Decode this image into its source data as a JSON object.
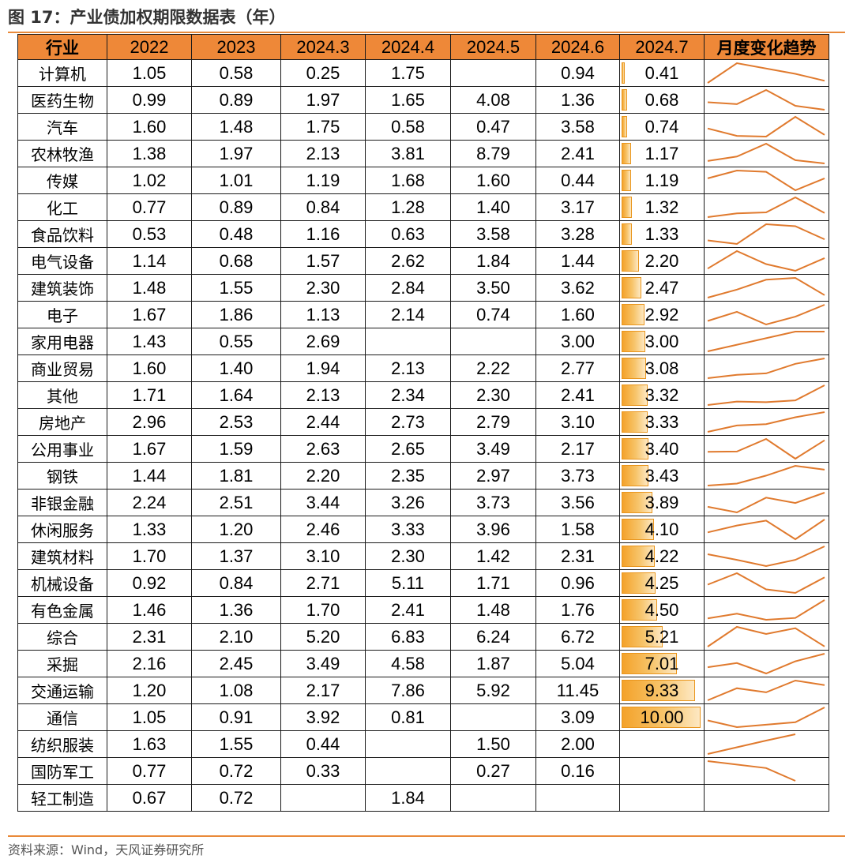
{
  "title": "图 17：产业债加权期限数据表（年）",
  "source": "资料来源：Wind，天风证券研究所",
  "colors": {
    "header_bg": "#ee8838",
    "bar": "#f4a22a",
    "spark": "#e07a2e",
    "rule": "#e98a3a"
  },
  "chart_data": {
    "type": "table",
    "columns": [
      "行业",
      "2022",
      "2023",
      "2024.3",
      "2024.4",
      "2024.5",
      "2024.6",
      "2024.7",
      "月度变化趋势"
    ],
    "rows": [
      [
        "计算机",
        "1.05",
        "0.58",
        "0.25",
        "1.75",
        "",
        "0.94",
        "0.41"
      ],
      [
        "医药生物",
        "0.99",
        "0.89",
        "1.97",
        "1.65",
        "4.08",
        "1.36",
        "0.68"
      ],
      [
        "汽车",
        "1.60",
        "1.48",
        "1.75",
        "0.58",
        "0.47",
        "3.58",
        "0.74"
      ],
      [
        "农林牧渔",
        "1.38",
        "1.97",
        "2.13",
        "3.81",
        "8.79",
        "2.41",
        "1.17"
      ],
      [
        "传媒",
        "1.02",
        "1.01",
        "1.19",
        "1.68",
        "1.60",
        "0.44",
        "1.19"
      ],
      [
        "化工",
        "0.77",
        "0.89",
        "0.84",
        "1.28",
        "1.40",
        "3.17",
        "1.32"
      ],
      [
        "食品饮料",
        "0.53",
        "0.48",
        "1.16",
        "0.63",
        "3.58",
        "3.28",
        "1.33"
      ],
      [
        "电气设备",
        "1.14",
        "0.68",
        "1.57",
        "2.62",
        "1.84",
        "1.44",
        "2.20"
      ],
      [
        "建筑装饰",
        "1.48",
        "1.55",
        "2.30",
        "2.84",
        "3.50",
        "3.62",
        "2.47"
      ],
      [
        "电子",
        "1.67",
        "1.86",
        "1.13",
        "2.14",
        "0.74",
        "1.60",
        "2.92"
      ],
      [
        "家用电器",
        "1.43",
        "0.55",
        "2.69",
        "",
        "",
        "3.00",
        "3.00"
      ],
      [
        "商业贸易",
        "1.60",
        "1.40",
        "1.94",
        "2.13",
        "2.22",
        "2.77",
        "3.08"
      ],
      [
        "其他",
        "1.71",
        "1.64",
        "2.13",
        "2.34",
        "2.30",
        "2.41",
        "3.32"
      ],
      [
        "房地产",
        "2.96",
        "2.53",
        "2.44",
        "2.73",
        "2.79",
        "3.10",
        "3.33"
      ],
      [
        "公用事业",
        "1.67",
        "1.59",
        "2.63",
        "2.65",
        "3.49",
        "2.17",
        "3.40"
      ],
      [
        "钢铁",
        "1.44",
        "1.81",
        "2.20",
        "2.35",
        "2.97",
        "3.73",
        "3.43"
      ],
      [
        "非银金融",
        "2.24",
        "2.51",
        "3.44",
        "3.26",
        "3.73",
        "3.56",
        "3.89"
      ],
      [
        "休闲服务",
        "1.33",
        "1.20",
        "2.46",
        "3.33",
        "3.96",
        "1.58",
        "4.10"
      ],
      [
        "建筑材料",
        "1.70",
        "1.37",
        "3.10",
        "2.30",
        "1.42",
        "2.31",
        "4.22"
      ],
      [
        "机械设备",
        "0.92",
        "0.84",
        "2.71",
        "5.11",
        "1.71",
        "0.96",
        "4.25"
      ],
      [
        "有色金属",
        "1.46",
        "1.36",
        "1.70",
        "2.41",
        "1.48",
        "1.76",
        "4.50"
      ],
      [
        "综合",
        "2.31",
        "2.10",
        "5.20",
        "6.83",
        "6.24",
        "6.72",
        "5.21"
      ],
      [
        "采掘",
        "2.16",
        "2.45",
        "3.49",
        "4.58",
        "1.87",
        "5.04",
        "7.01"
      ],
      [
        "交通运输",
        "1.20",
        "1.08",
        "2.17",
        "7.86",
        "5.92",
        "11.45",
        "9.33"
      ],
      [
        "通信",
        "1.05",
        "0.91",
        "3.92",
        "0.81",
        "",
        "3.09",
        "10.00"
      ],
      [
        "纺织服装",
        "1.63",
        "1.55",
        "0.44",
        "",
        "1.50",
        "2.00",
        ""
      ],
      [
        "国防军工",
        "0.77",
        "0.72",
        "0.33",
        "",
        "0.27",
        "0.16",
        ""
      ],
      [
        "轻工制造",
        "0.67",
        "0.72",
        "",
        "1.84",
        "",
        "",
        ""
      ]
    ],
    "bar_column": "2024.7",
    "bar_max": 10.0,
    "sparkline_columns": [
      "2024.3",
      "2024.4",
      "2024.5",
      "2024.6",
      "2024.7"
    ]
  }
}
